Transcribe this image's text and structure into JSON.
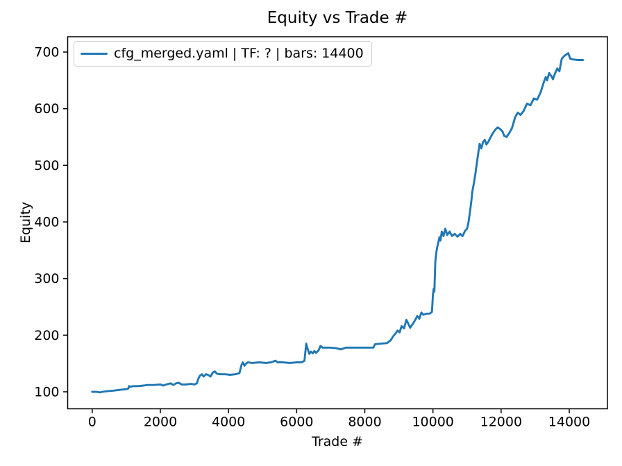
{
  "chart_data": {
    "type": "line",
    "title": "Equity vs Trade #",
    "xlabel": "Trade #",
    "ylabel": "Equity",
    "xlim": [
      -720,
      15120
    ],
    "ylim": [
      70,
      727
    ],
    "x_ticks": [
      0,
      2000,
      4000,
      6000,
      8000,
      10000,
      12000,
      14000
    ],
    "y_ticks": [
      100,
      200,
      300,
      400,
      500,
      600,
      700
    ],
    "grid": false,
    "legend_position": "upper left",
    "line_color": "#1f77b4",
    "series": [
      {
        "name": "cfg_merged.yaml | TF: ? | bars: 14400",
        "points": [
          [
            0,
            100
          ],
          [
            120,
            100
          ],
          [
            230,
            99
          ],
          [
            300,
            100
          ],
          [
            420,
            101
          ],
          [
            600,
            102
          ],
          [
            750,
            103
          ],
          [
            900,
            104
          ],
          [
            1030,
            105
          ],
          [
            1060,
            106
          ],
          [
            1080,
            110
          ],
          [
            1120,
            109
          ],
          [
            1200,
            110
          ],
          [
            1350,
            110
          ],
          [
            1500,
            111
          ],
          [
            1620,
            112
          ],
          [
            1800,
            112
          ],
          [
            2000,
            113
          ],
          [
            2080,
            111
          ],
          [
            2180,
            113
          ],
          [
            2300,
            115
          ],
          [
            2380,
            112
          ],
          [
            2460,
            115
          ],
          [
            2540,
            116
          ],
          [
            2620,
            113
          ],
          [
            2750,
            113
          ],
          [
            2900,
            114
          ],
          [
            3000,
            113
          ],
          [
            3070,
            115
          ],
          [
            3120,
            124
          ],
          [
            3170,
            129
          ],
          [
            3220,
            131
          ],
          [
            3270,
            127
          ],
          [
            3340,
            131
          ],
          [
            3400,
            130
          ],
          [
            3470,
            127
          ],
          [
            3540,
            134
          ],
          [
            3600,
            136
          ],
          [
            3660,
            132
          ],
          [
            3750,
            131
          ],
          [
            3900,
            131
          ],
          [
            4050,
            130
          ],
          [
            4200,
            131
          ],
          [
            4320,
            133
          ],
          [
            4380,
            147
          ],
          [
            4420,
            152
          ],
          [
            4470,
            146
          ],
          [
            4520,
            150
          ],
          [
            4570,
            152
          ],
          [
            4700,
            151
          ],
          [
            4900,
            152
          ],
          [
            5100,
            151
          ],
          [
            5250,
            152
          ],
          [
            5380,
            155
          ],
          [
            5440,
            152
          ],
          [
            5600,
            152
          ],
          [
            5800,
            151
          ],
          [
            6000,
            152
          ],
          [
            6150,
            152
          ],
          [
            6230,
            155
          ],
          [
            6280,
            185
          ],
          [
            6320,
            176
          ],
          [
            6370,
            167
          ],
          [
            6420,
            171
          ],
          [
            6470,
            168
          ],
          [
            6520,
            172
          ],
          [
            6570,
            169
          ],
          [
            6640,
            173
          ],
          [
            6700,
            181
          ],
          [
            6760,
            178
          ],
          [
            6850,
            178
          ],
          [
            7000,
            178
          ],
          [
            7150,
            177
          ],
          [
            7300,
            175
          ],
          [
            7450,
            178
          ],
          [
            7700,
            178
          ],
          [
            8000,
            178
          ],
          [
            8250,
            178
          ],
          [
            8300,
            184
          ],
          [
            8450,
            185
          ],
          [
            8650,
            186
          ],
          [
            8760,
            191
          ],
          [
            8830,
            198
          ],
          [
            8900,
            203
          ],
          [
            8960,
            208
          ],
          [
            9020,
            205
          ],
          [
            9080,
            216
          ],
          [
            9150,
            212
          ],
          [
            9220,
            227
          ],
          [
            9270,
            221
          ],
          [
            9330,
            213
          ],
          [
            9420,
            221
          ],
          [
            9480,
            227
          ],
          [
            9540,
            234
          ],
          [
            9600,
            229
          ],
          [
            9660,
            240
          ],
          [
            9720,
            236
          ],
          [
            9800,
            238
          ],
          [
            9900,
            238
          ],
          [
            9970,
            241
          ],
          [
            10000,
            272
          ],
          [
            10020,
            282
          ],
          [
            10040,
            277
          ],
          [
            10070,
            330
          ],
          [
            10100,
            347
          ],
          [
            10130,
            357
          ],
          [
            10160,
            364
          ],
          [
            10190,
            373
          ],
          [
            10220,
            367
          ],
          [
            10260,
            383
          ],
          [
            10310,
            375
          ],
          [
            10360,
            388
          ],
          [
            10420,
            377
          ],
          [
            10490,
            383
          ],
          [
            10560,
            375
          ],
          [
            10640,
            379
          ],
          [
            10720,
            374
          ],
          [
            10800,
            379
          ],
          [
            10870,
            375
          ],
          [
            10940,
            384
          ],
          [
            11000,
            388
          ],
          [
            11040,
            398
          ],
          [
            11080,
            415
          ],
          [
            11120,
            434
          ],
          [
            11160,
            455
          ],
          [
            11200,
            468
          ],
          [
            11240,
            483
          ],
          [
            11290,
            505
          ],
          [
            11330,
            522
          ],
          [
            11370,
            538
          ],
          [
            11420,
            530
          ],
          [
            11470,
            541
          ],
          [
            11520,
            545
          ],
          [
            11570,
            537
          ],
          [
            11620,
            541
          ],
          [
            11680,
            548
          ],
          [
            11750,
            556
          ],
          [
            11830,
            563
          ],
          [
            11900,
            567
          ],
          [
            11970,
            564
          ],
          [
            12040,
            560
          ],
          [
            12090,
            552
          ],
          [
            12160,
            550
          ],
          [
            12240,
            557
          ],
          [
            12320,
            566
          ],
          [
            12410,
            585
          ],
          [
            12490,
            593
          ],
          [
            12570,
            589
          ],
          [
            12660,
            596
          ],
          [
            12760,
            609
          ],
          [
            12860,
            606
          ],
          [
            12960,
            618
          ],
          [
            13060,
            616
          ],
          [
            13160,
            629
          ],
          [
            13260,
            648
          ],
          [
            13310,
            656
          ],
          [
            13350,
            650
          ],
          [
            13410,
            663
          ],
          [
            13480,
            657
          ],
          [
            13520,
            652
          ],
          [
            13580,
            662
          ],
          [
            13650,
            671
          ],
          [
            13710,
            666
          ],
          [
            13780,
            688
          ],
          [
            13850,
            693
          ],
          [
            13920,
            696
          ],
          [
            13970,
            698
          ],
          [
            14030,
            688
          ],
          [
            14110,
            687
          ],
          [
            14250,
            686
          ],
          [
            14400,
            686
          ]
        ]
      }
    ]
  }
}
